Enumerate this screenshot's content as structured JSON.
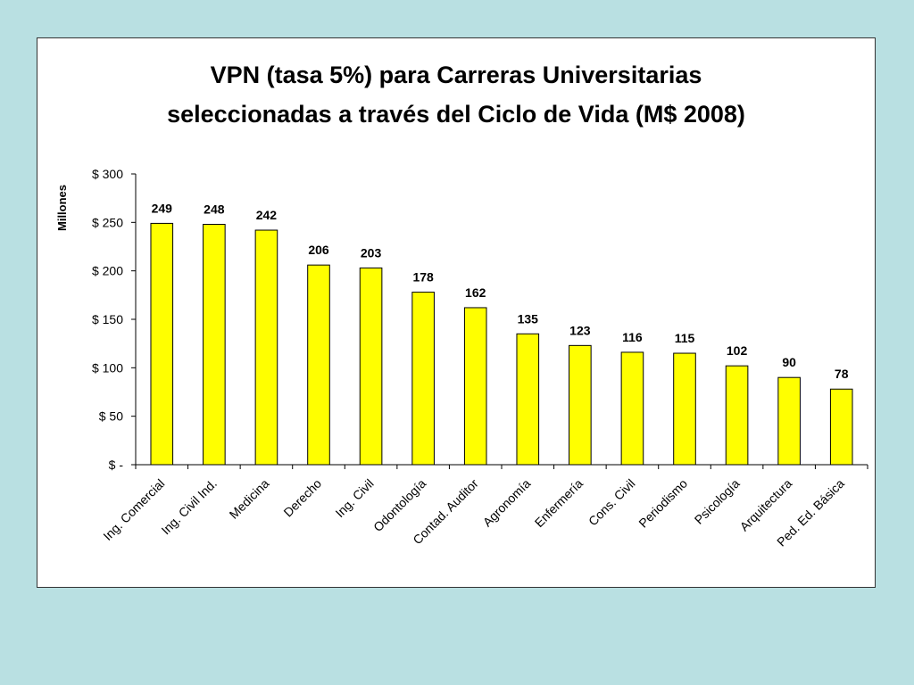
{
  "chart_data": {
    "type": "bar",
    "title": "VPN (tasa 5%) para Carreras Universitarias seleccionadas a través del Ciclo de Vida (M$ 2008)",
    "title_lines": [
      "VPN (tasa 5%) para Carreras Universitarias",
      "seleccionadas a través del Ciclo de Vida (M$ 2008)"
    ],
    "xlabel": "",
    "ylabel": "Millones",
    "ylim": [
      0,
      300
    ],
    "yticks": [
      0,
      50,
      100,
      150,
      200,
      250,
      300
    ],
    "ytick_labels": [
      "$ -",
      "$ 50",
      "$ 100",
      "$ 150",
      "$ 200",
      "$ 250",
      "$ 300"
    ],
    "grid": false,
    "legend": "none",
    "bar_color": "#ffff00",
    "bar_edge_color": "#000000",
    "categories": [
      "Ing. Comercial",
      "Ing. Civil Ind.",
      "Medicina",
      "Derecho",
      "Ing. Civil",
      "Odontología",
      "Contad. Auditor",
      "Agronomía",
      "Enfermería",
      "Cons. Civil",
      "Periodismo",
      "Psicología",
      "Arquitectura",
      "Ped. Ed. Básica"
    ],
    "values": [
      249,
      248,
      242,
      206,
      203,
      178,
      162,
      135,
      123,
      116,
      115,
      102,
      90,
      78
    ],
    "data_labels": [
      "249",
      "248",
      "242",
      "206",
      "203",
      "178",
      "162",
      "135",
      "123",
      "116",
      "115",
      "102",
      "90",
      "78"
    ]
  }
}
